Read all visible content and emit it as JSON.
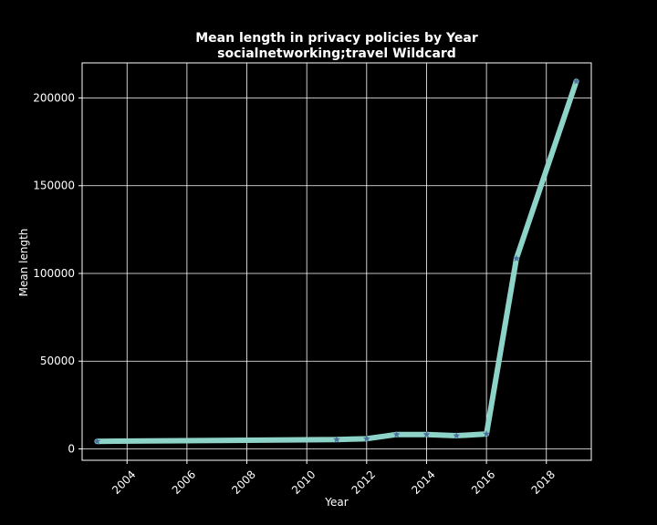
{
  "chart_data": {
    "type": "line",
    "title": "Mean length in privacy policies by Year",
    "subtitle": "socialnetworking;travel Wildcard",
    "xlabel": "Year",
    "ylabel": "Mean length",
    "xlim": [
      2002.5,
      2019.5
    ],
    "ylim": [
      -6500,
      220000
    ],
    "x_ticks": [
      2004,
      2006,
      2008,
      2010,
      2012,
      2014,
      2016,
      2018
    ],
    "x_tick_labels": [
      "2004",
      "2006",
      "2008",
      "2010",
      "2012",
      "2014",
      "2016",
      "2018"
    ],
    "y_ticks": [
      0,
      50000,
      100000,
      150000,
      200000
    ],
    "y_tick_labels": [
      "0",
      "50000",
      "100000",
      "150000",
      "200000"
    ],
    "grid": true,
    "legend": "none",
    "series": [
      {
        "x": [
          2003,
          2011,
          2012,
          2013,
          2014,
          2015,
          2016,
          2017,
          2019
        ],
        "y": [
          4300,
          5300,
          5800,
          8200,
          8200,
          7500,
          8500,
          108500,
          209500
        ],
        "line_color": "#8dd3c7",
        "marker": "star",
        "marker_color": "#4f6f9f"
      }
    ],
    "colors": {
      "background": "#000000",
      "axes": "#ffffff",
      "grid": "#ffffff",
      "text": "#ffffff"
    }
  }
}
